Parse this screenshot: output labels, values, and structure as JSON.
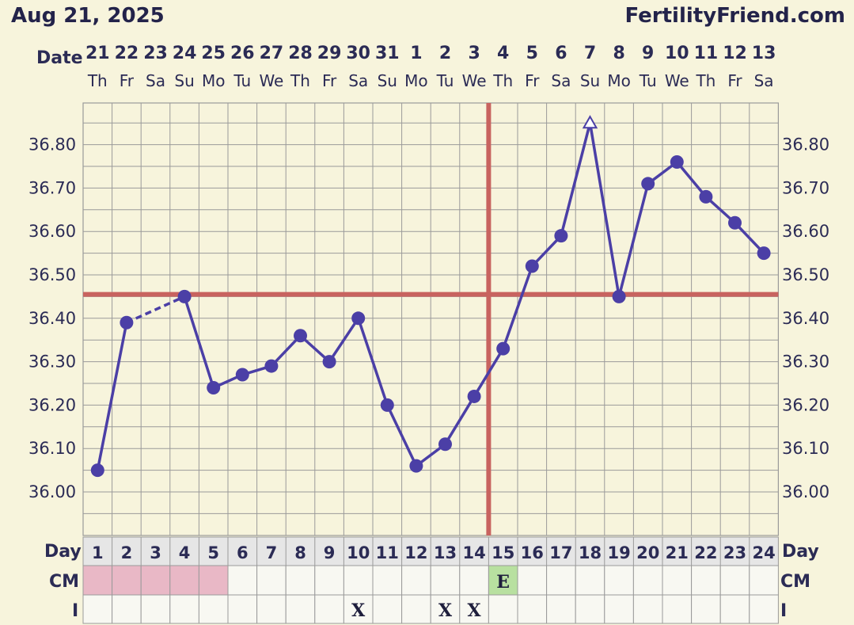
{
  "header": {
    "date": "Aug 21, 2025",
    "brand": "FertilityFriend.com"
  },
  "row_labels": {
    "date": "Date",
    "day": "Day",
    "cm": "CM",
    "intercourse": "I"
  },
  "colors": {
    "background": "#f7f4dc",
    "grid": "#9a9a9a",
    "series": "#4b3fa6",
    "coverline": "#c8635f",
    "cm_pink": "#e9b8c6",
    "cm_green": "#b8e0a0",
    "row_band": "#e6e6e6"
  },
  "chart_data": {
    "type": "line",
    "title": "",
    "xlabel": "Day",
    "ylabel": "",
    "ylim": [
      35.95,
      36.9
    ],
    "yticks": [
      "36.00",
      "36.10",
      "36.20",
      "36.30",
      "36.40",
      "36.50",
      "36.60",
      "36.70",
      "36.80"
    ],
    "cycle_days": [
      "1",
      "2",
      "3",
      "4",
      "5",
      "6",
      "7",
      "8",
      "9",
      "10",
      "11",
      "12",
      "13",
      "14",
      "15",
      "16",
      "17",
      "18",
      "19",
      "20",
      "21",
      "22",
      "23",
      "24"
    ],
    "dates": [
      "21",
      "22",
      "23",
      "24",
      "25",
      "26",
      "27",
      "28",
      "29",
      "30",
      "31",
      "1",
      "2",
      "3",
      "4",
      "5",
      "6",
      "7",
      "8",
      "9",
      "10",
      "11",
      "12",
      "13"
    ],
    "weekdays": [
      "Th",
      "Fr",
      "Sa",
      "Su",
      "Mo",
      "Tu",
      "We",
      "Th",
      "Fr",
      "Sa",
      "Su",
      "Mo",
      "Tu",
      "We",
      "Th",
      "Fr",
      "Sa",
      "Su",
      "Mo",
      "Tu",
      "We",
      "Th",
      "Fr",
      "Sa"
    ],
    "series": [
      {
        "values": [
          36.05,
          36.39,
          null,
          36.45,
          36.24,
          36.27,
          36.29,
          36.36,
          36.3,
          36.4,
          36.2,
          36.06,
          36.11,
          36.22,
          36.33,
          36.52,
          36.59,
          36.85,
          36.45,
          36.71,
          36.76,
          36.68,
          36.62,
          36.55
        ]
      }
    ],
    "open_marker_day": 18,
    "dashed_segment_days": [
      2,
      4
    ],
    "coverline": 36.455,
    "ovulation_day": 15,
    "cm": [
      "",
      "",
      "",
      "",
      "",
      "",
      "",
      "",
      "",
      "",
      "",
      "",
      "",
      "",
      "E",
      "",
      "",
      "",
      "",
      "",
      "",
      "",
      "",
      ""
    ],
    "cm_pink_days": [
      1,
      2,
      3,
      4,
      5
    ],
    "intercourse": [
      "",
      "",
      "",
      "",
      "",
      "",
      "",
      "",
      "",
      "X",
      "",
      "",
      "X",
      "X",
      "",
      "",
      "",
      "",
      "",
      "",
      "",
      "",
      "",
      ""
    ],
    "grid": true
  }
}
